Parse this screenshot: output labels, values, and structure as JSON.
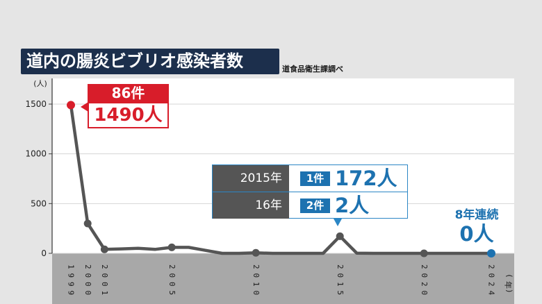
{
  "title": "道内の腸炎ビブリオ感染者数",
  "source": "道食品衛生課調べ",
  "chart_data": {
    "type": "line",
    "title": "道内の腸炎ビブリオ感染者数",
    "ylabel": "(人)",
    "xlabel": "(年)",
    "ylim": [
      0,
      1500
    ],
    "yticks": [
      "1500",
      "1000",
      "500",
      "0"
    ],
    "xtick_labels": [
      "1999",
      "2000",
      "2001",
      "2005",
      "2010",
      "2015",
      "2020",
      "2024"
    ],
    "grid": true,
    "series": [
      {
        "x": [
          1999,
          2000,
          2001,
          2002,
          2003,
          2004,
          2005,
          2006,
          2007,
          2008,
          2009,
          2010,
          2011,
          2012,
          2013,
          2014,
          2015,
          2016,
          2017,
          2018,
          2019,
          2020,
          2021,
          2022,
          2023,
          2024
        ],
        "y": [
          1490,
          300,
          40,
          45,
          50,
          40,
          60,
          60,
          30,
          0,
          0,
          5,
          0,
          0,
          0,
          0,
          172,
          2,
          0,
          0,
          0,
          0,
          0,
          0,
          0,
          0
        ],
        "color": "#555555"
      }
    ],
    "markers": [
      {
        "year": 1999,
        "color": "#d81d2a"
      },
      {
        "year": 2000,
        "color": "#555555"
      },
      {
        "year": 2001,
        "color": "#555555"
      },
      {
        "year": 2005,
        "color": "#555555"
      },
      {
        "year": 2010,
        "color": "#555555"
      },
      {
        "year": 2015,
        "color": "#555555"
      },
      {
        "year": 2020,
        "color": "#555555"
      },
      {
        "year": 2024,
        "color": "#1d72b0"
      }
    ],
    "annotations": {
      "peak": {
        "cases": "86件",
        "people": "1490人"
      },
      "table": [
        {
          "year": "2015年",
          "cases": "1件",
          "people": "172人"
        },
        {
          "year": "16年",
          "cases": "2件",
          "people": "2人"
        }
      ],
      "streak": {
        "label": "8年連続",
        "value": "0人"
      }
    }
  },
  "colors": {
    "accent_red": "#d81d2a",
    "accent_blue": "#1d72b0",
    "line": "#555555",
    "title_bg": "#1c2f4c"
  }
}
